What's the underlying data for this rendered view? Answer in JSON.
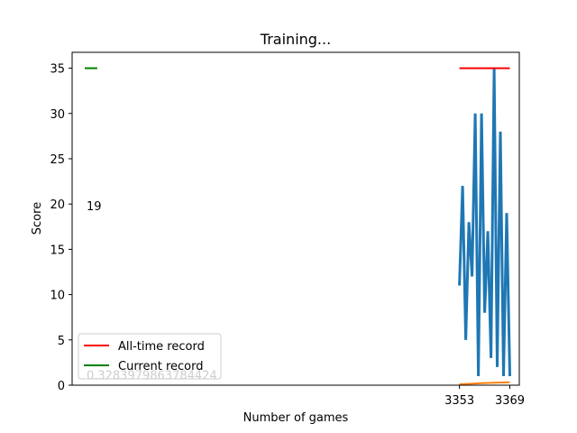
{
  "chart_data": {
    "type": "line",
    "title": "Training...",
    "xlabel": "Number of games",
    "ylabel": "Score",
    "ylim": [
      0,
      36.75
    ],
    "xlim": [
      3230,
      3372
    ],
    "yticks": [
      0,
      5,
      10,
      15,
      20,
      25,
      30,
      35
    ],
    "xticks": [
      {
        "value": 3353,
        "label": "3353"
      },
      {
        "value": 3369,
        "label": "3369"
      }
    ],
    "legend": {
      "placement": "lower-left",
      "entries": [
        {
          "label": "All-time record",
          "color": "#ff0000"
        },
        {
          "label": "Current record",
          "color": "#008000"
        }
      ]
    },
    "series": [
      {
        "kind": "scores",
        "color": "#1f77b4",
        "x": [
          3353,
          3354,
          3355,
          3356,
          3357,
          3358,
          3359,
          3360,
          3361,
          3362,
          3363,
          3364,
          3365,
          3366,
          3367,
          3368,
          3369
        ],
        "values": [
          11,
          22,
          5,
          18,
          12,
          30,
          1,
          30,
          8,
          17,
          3,
          35,
          2,
          28,
          1,
          19,
          1
        ]
      },
      {
        "kind": "mean-score",
        "color": "#ff7f0e",
        "x": [
          3353,
          3356,
          3360,
          3364,
          3369
        ],
        "values": [
          0.1,
          0.15,
          0.22,
          0.28,
          0.33
        ]
      },
      {
        "kind": "all-time-record",
        "color": "#ff0000",
        "x": [
          3353,
          3369
        ],
        "values": [
          35,
          35
        ]
      },
      {
        "kind": "current-record",
        "color": "#008000",
        "x": [
          3234,
          3238
        ],
        "values": [
          35,
          35
        ]
      }
    ],
    "annotations": [
      {
        "text": "19",
        "x": 3234,
        "y": 19
      },
      {
        "text": "0.3283979863784424",
        "x": 3234,
        "y": 0.33
      }
    ]
  }
}
